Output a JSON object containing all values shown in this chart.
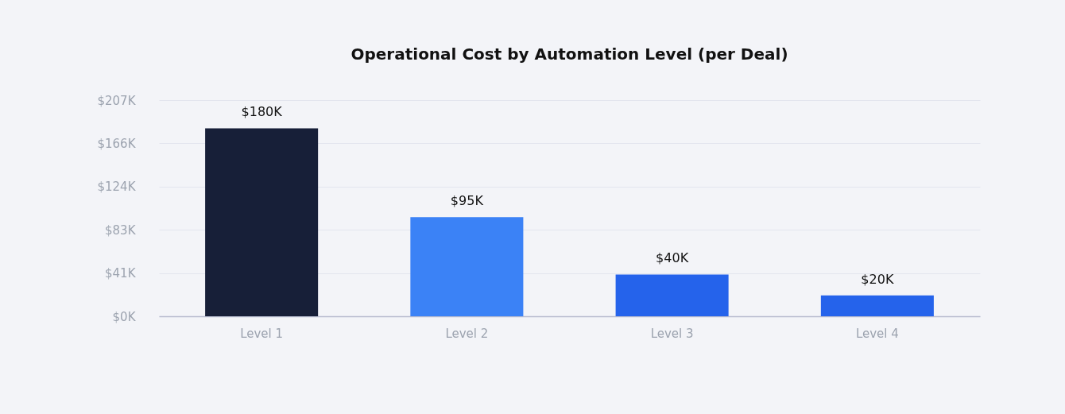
{
  "chart_data": {
    "type": "bar",
    "title": "Operational Cost by Automation Level (per Deal)",
    "categories": [
      "Level 1",
      "Level 2",
      "Level 3",
      "Level 4"
    ],
    "values": [
      180,
      95,
      40,
      20
    ],
    "colors": [
      "#171f38",
      "#3b82f6",
      "#2563eb",
      "#2563eb"
    ],
    "value_labels": [
      "$180K",
      "$95K",
      "$40K",
      "$20K"
    ],
    "ylim": [
      0,
      207
    ],
    "yticks": [
      {
        "value": 0,
        "label": "$0K"
      },
      {
        "value": 41.4,
        "label": "$41K"
      },
      {
        "value": 82.8,
        "label": "$83K"
      },
      {
        "value": 124.2,
        "label": "$124K"
      },
      {
        "value": 165.6,
        "label": "$166K"
      },
      {
        "value": 207,
        "label": "$207K"
      }
    ],
    "grid": true
  }
}
